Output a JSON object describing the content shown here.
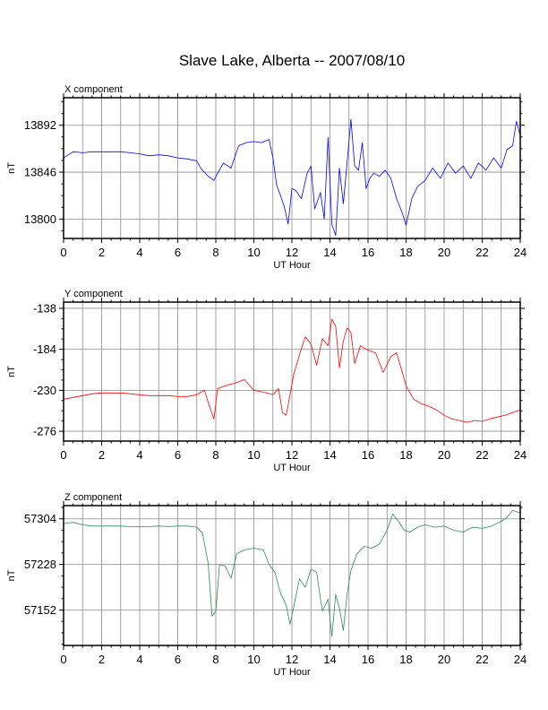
{
  "title": "Slave Lake, Alberta -- 2007/08/10",
  "chart_data": [
    {
      "type": "line",
      "panel_label": "X component",
      "xlabel": "UT Hour",
      "ylabel": "nT",
      "color": "#0000ff",
      "xlim": [
        0,
        24
      ],
      "x_ticks": [
        0,
        2,
        4,
        6,
        8,
        10,
        12,
        14,
        16,
        18,
        20,
        22,
        24
      ],
      "ylim": [
        13781,
        13919
      ],
      "y_ticks": [
        13800,
        13846,
        13892
      ],
      "grid": true,
      "series": [
        {
          "x": [
            0,
            0.5,
            1,
            1.5,
            2,
            2.5,
            3,
            3.5,
            4,
            4.5,
            5,
            5.5,
            6,
            6.5,
            7,
            7.2,
            7.6,
            7.9,
            8.1,
            8.4,
            8.8,
            9.2,
            9.6,
            10,
            10.4,
            10.8,
            11,
            11.2,
            11.4,
            11.6,
            11.8,
            12,
            12.2,
            12.5,
            12.8,
            13.0,
            13.2,
            13.5,
            13.7,
            13.9,
            14.1,
            14.3,
            14.5,
            14.7,
            14.9,
            15.1,
            15.3,
            15.5,
            15.7,
            15.9,
            16.1,
            16.3,
            16.6,
            16.9,
            17.2,
            17.5,
            17.8,
            18.0,
            18.3,
            18.6,
            19.0,
            19.4,
            19.8,
            20.2,
            20.6,
            21.0,
            21.4,
            21.8,
            22.2,
            22.6,
            23.0,
            23.3,
            23.6,
            23.8,
            24
          ],
          "y": [
            13860,
            13866,
            13865,
            13866,
            13866,
            13866,
            13866,
            13865,
            13864,
            13862,
            13863,
            13862,
            13860,
            13859,
            13857,
            13850,
            13842,
            13838,
            13845,
            13855,
            13850,
            13872,
            13875,
            13876,
            13875,
            13878,
            13860,
            13833,
            13823,
            13812,
            13795,
            13830,
            13828,
            13820,
            13845,
            13852,
            13810,
            13826,
            13800,
            13880,
            13795,
            13784,
            13850,
            13815,
            13855,
            13898,
            13852,
            13848,
            13875,
            13830,
            13840,
            13845,
            13842,
            13848,
            13840,
            13820,
            13806,
            13794,
            13820,
            13832,
            13838,
            13850,
            13840,
            13855,
            13845,
            13852,
            13840,
            13855,
            13848,
            13860,
            13850,
            13868,
            13872,
            13896,
            13882
          ]
        }
      ]
    },
    {
      "type": "line",
      "panel_label": "Y component",
      "xlabel": "UT Hour",
      "ylabel": "nT",
      "color": "#ff0000",
      "xlim": [
        0,
        24
      ],
      "x_ticks": [
        0,
        2,
        4,
        6,
        8,
        10,
        12,
        14,
        16,
        18,
        20,
        22,
        24
      ],
      "ylim": [
        -287,
        -131
      ],
      "y_ticks": [
        -138,
        -184,
        -230,
        -276
      ],
      "grid": true,
      "series": [
        {
          "x": [
            0,
            0.5,
            1,
            1.5,
            2,
            2.5,
            3,
            3.5,
            4,
            4.5,
            5,
            5.5,
            6,
            6.5,
            7,
            7.4,
            7.7,
            7.9,
            8.1,
            8.5,
            9.0,
            9.5,
            10,
            10.5,
            11,
            11.3,
            11.5,
            11.7,
            11.9,
            12.1,
            12.4,
            12.7,
            13.0,
            13.3,
            13.6,
            13.9,
            14.1,
            14.3,
            14.5,
            14.7,
            14.9,
            15.1,
            15.3,
            15.6,
            16.0,
            16.4,
            16.8,
            17.2,
            17.5,
            17.8,
            18.0,
            18.4,
            18.8,
            19.2,
            19.6,
            20.0,
            20.4,
            20.8,
            21.2,
            21.6,
            22.0,
            22.4,
            22.8,
            23.2,
            23.6,
            24
          ],
          "y": [
            -240,
            -238,
            -236,
            -234,
            -233,
            -233,
            -233,
            -234,
            -235,
            -236,
            -236,
            -236,
            -237,
            -237,
            -235,
            -230,
            -250,
            -262,
            -228,
            -225,
            -222,
            -218,
            -230,
            -232,
            -235,
            -228,
            -255,
            -258,
            -235,
            -212,
            -190,
            -170,
            -178,
            -202,
            -172,
            -180,
            -150,
            -158,
            -205,
            -175,
            -160,
            -165,
            -200,
            -180,
            -185,
            -188,
            -210,
            -192,
            -188,
            -210,
            -225,
            -240,
            -245,
            -248,
            -252,
            -258,
            -262,
            -264,
            -266,
            -264,
            -265,
            -262,
            -260,
            -258,
            -255,
            -252
          ]
        }
      ]
    },
    {
      "type": "line",
      "panel_label": "Z component",
      "xlabel": "UT Hour",
      "ylabel": "nT",
      "color": "#2e8b57",
      "xlim": [
        0,
        24
      ],
      "x_ticks": [
        0,
        2,
        4,
        6,
        8,
        10,
        12,
        14,
        16,
        18,
        20,
        22,
        24
      ],
      "ylim": [
        57093,
        57326
      ],
      "y_ticks": [
        57152,
        57228,
        57304
      ],
      "grid": true,
      "series": [
        {
          "x": [
            0,
            0.5,
            1,
            1.5,
            2,
            2.5,
            3,
            3.5,
            4,
            4.5,
            5,
            5.5,
            6,
            6.5,
            7,
            7.3,
            7.6,
            7.8,
            8.0,
            8.2,
            8.5,
            8.8,
            9.1,
            9.5,
            10,
            10.5,
            10.8,
            11.1,
            11.4,
            11.7,
            11.9,
            12.1,
            12.4,
            12.7,
            13.0,
            13.3,
            13.6,
            13.9,
            14.1,
            14.3,
            14.5,
            14.7,
            14.9,
            15.1,
            15.4,
            15.8,
            16.2,
            16.6,
            17.0,
            17.3,
            17.6,
            17.9,
            18.2,
            18.6,
            19.0,
            19.5,
            20.0,
            20.5,
            21.0,
            21.5,
            22.0,
            22.5,
            23.0,
            23.3,
            23.6,
            24
          ],
          "y": [
            57296,
            57298,
            57294,
            57292,
            57292,
            57292,
            57292,
            57291,
            57291,
            57291,
            57292,
            57291,
            57292,
            57292,
            57290,
            57280,
            57230,
            57142,
            57150,
            57228,
            57225,
            57205,
            57246,
            57252,
            57255,
            57252,
            57228,
            57215,
            57180,
            57160,
            57128,
            57158,
            57204,
            57190,
            57220,
            57215,
            57150,
            57170,
            57108,
            57178,
            57155,
            57118,
            57178,
            57218,
            57245,
            57258,
            57255,
            57262,
            57285,
            57312,
            57300,
            57285,
            57282,
            57290,
            57294,
            57290,
            57292,
            57285,
            57282,
            57290,
            57288,
            57292,
            57300,
            57306,
            57318,
            57314
          ]
        }
      ]
    }
  ]
}
